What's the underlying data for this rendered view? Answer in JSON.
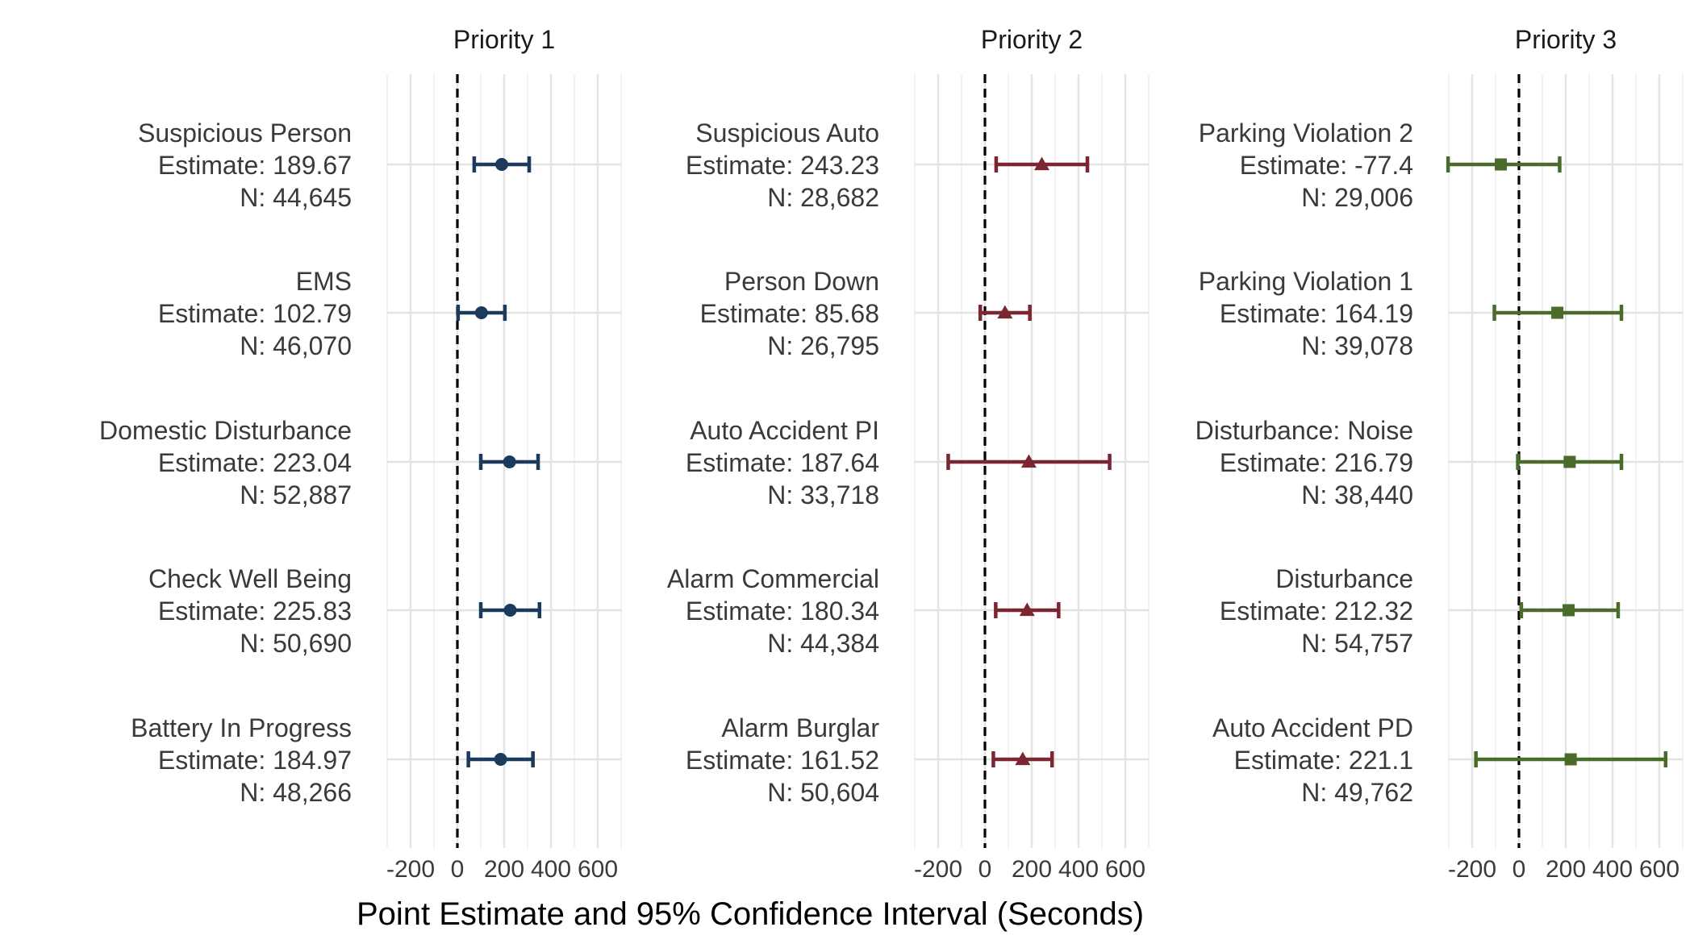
{
  "chart_data": {
    "type": "forest",
    "xlabel": "Point Estimate and 95% Confidence Interval (Seconds)",
    "xlim": [
      -300,
      700
    ],
    "xticks": [
      -200,
      0,
      200,
      400,
      600
    ],
    "xtick_labels": [
      "-200",
      "0",
      "200",
      "400",
      "600"
    ],
    "reference_line": 0,
    "grid": true,
    "panels": [
      {
        "title": "Priority 1",
        "color": "#1b3a5c",
        "marker": "circle",
        "rows": [
          {
            "name": "Suspicious Person",
            "estimate_label": "Estimate: 189.67",
            "n_label": "N: 44,645",
            "estimate": 189.67,
            "lower": 72,
            "upper": 307
          },
          {
            "name": "EMS",
            "estimate_label": "Estimate: 102.79",
            "n_label": "N: 46,070",
            "estimate": 102.79,
            "lower": 3,
            "upper": 203
          },
          {
            "name": "Domestic Disturbance",
            "estimate_label": "Estimate: 223.04",
            "n_label": "N: 52,887",
            "estimate": 223.04,
            "lower": 100,
            "upper": 345
          },
          {
            "name": "Check Well Being",
            "estimate_label": "Estimate: 225.83",
            "n_label": "N: 50,690",
            "estimate": 225.83,
            "lower": 100,
            "upper": 351
          },
          {
            "name": "Battery In Progress",
            "estimate_label": "Estimate: 184.97",
            "n_label": "N: 48,266",
            "estimate": 184.97,
            "lower": 47,
            "upper": 323
          }
        ]
      },
      {
        "title": "Priority 2",
        "color": "#7b2731",
        "marker": "triangle",
        "rows": [
          {
            "name": "Suspicious Auto",
            "estimate_label": "Estimate: 243.23",
            "n_label": "N: 28,682",
            "estimate": 243.23,
            "lower": 48,
            "upper": 438
          },
          {
            "name": "Person Down",
            "estimate_label": "Estimate: 85.68",
            "n_label": "N: 26,795",
            "estimate": 85.68,
            "lower": -20,
            "upper": 192
          },
          {
            "name": "Auto Accident PI",
            "estimate_label": "Estimate: 187.64",
            "n_label": "N: 33,718",
            "estimate": 187.64,
            "lower": -157,
            "upper": 533
          },
          {
            "name": "Alarm Commercial",
            "estimate_label": "Estimate: 180.34",
            "n_label": "N: 44,384",
            "estimate": 180.34,
            "lower": 46,
            "upper": 315
          },
          {
            "name": "Alarm Burglar",
            "estimate_label": "Estimate: 161.52",
            "n_label": "N: 50,604",
            "estimate": 161.52,
            "lower": 36,
            "upper": 287
          }
        ]
      },
      {
        "title": "Priority 3",
        "color": "#4a6b2a",
        "marker": "square",
        "rows": [
          {
            "name": "Parking Violation 2",
            "estimate_label": "Estimate: -77.4",
            "n_label": "N: 29,006",
            "estimate": -77.4,
            "lower": -303,
            "upper": 174
          },
          {
            "name": "Parking Violation 1",
            "estimate_label": "Estimate: 164.19",
            "n_label": "N: 39,078",
            "estimate": 164.19,
            "lower": -105,
            "upper": 438
          },
          {
            "name": "Disturbance: Noise",
            "estimate_label": "Estimate: 216.79",
            "n_label": "N: 38,440",
            "estimate": 216.79,
            "lower": -5,
            "upper": 438
          },
          {
            "name": "Disturbance",
            "estimate_label": "Estimate: 212.32",
            "n_label": "N: 54,757",
            "estimate": 212.32,
            "lower": 10,
            "upper": 424
          },
          {
            "name": "Auto Accident PD",
            "estimate_label": "Estimate: 221.1",
            "n_label": "N: 49,762",
            "estimate": 221.1,
            "lower": -184,
            "upper": 627
          }
        ]
      }
    ]
  }
}
